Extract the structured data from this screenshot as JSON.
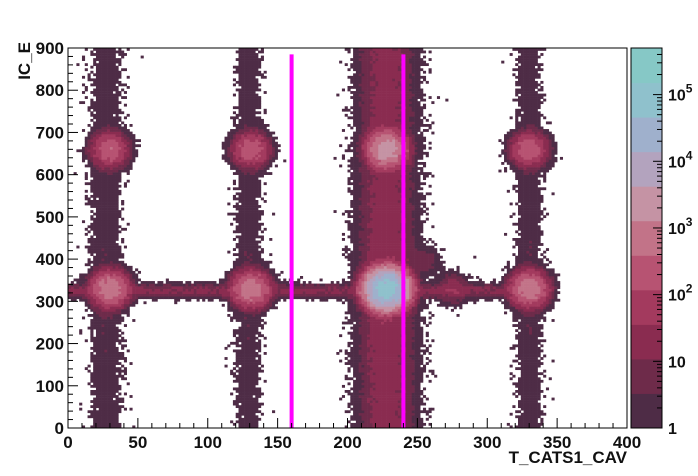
{
  "chart_data": {
    "type": "heatmap",
    "title": "",
    "xlabel": "T_CATS1_CAV",
    "ylabel": "IC_E",
    "xlim": [
      0,
      400
    ],
    "ylim": [
      0,
      900
    ],
    "x_ticks": [
      0,
      50,
      100,
      150,
      200,
      250,
      300,
      350,
      400
    ],
    "y_ticks": [
      0,
      100,
      200,
      300,
      400,
      500,
      600,
      700,
      800,
      900
    ],
    "z_scale": "log",
    "z_range": [
      1,
      500000
    ],
    "colorbar_ticks": [
      {
        "value": 1,
        "label": "1"
      },
      {
        "value": 10,
        "label": "10"
      },
      {
        "value": 100,
        "base": "10",
        "exp": "2"
      },
      {
        "value": 1000,
        "base": "10",
        "exp": "3"
      },
      {
        "value": 10000,
        "base": "10",
        "exp": "4"
      },
      {
        "value": 100000,
        "base": "10",
        "exp": "5"
      }
    ],
    "palette": [
      "#4e2c46",
      "#6e2b4a",
      "#8a2c50",
      "#a33a5e",
      "#b75372",
      "#c27388",
      "#c593a4",
      "#b3a3be",
      "#9fb0cc",
      "#8fc1cc",
      "#86c8c6"
    ],
    "vertical_bands": [
      {
        "x_center": 27,
        "half_width": 11,
        "y_max": 900,
        "peak_counts": 100
      },
      {
        "x_center": 129,
        "half_width": 9,
        "y_max": 900,
        "peak_counts": 100
      },
      {
        "x_center": 228,
        "half_width": 17,
        "y_max": 900,
        "peak_counts": 1000
      },
      {
        "x_center": 330,
        "half_width": 9,
        "y_max": 900,
        "peak_counts": 100
      }
    ],
    "blobs": [
      {
        "x": 30,
        "y": 330,
        "counts": 1000
      },
      {
        "x": 30,
        "y": 660,
        "counts": 300
      },
      {
        "x": 131,
        "y": 330,
        "counts": 1000
      },
      {
        "x": 131,
        "y": 660,
        "counts": 300
      },
      {
        "x": 228,
        "y": 330,
        "counts": 100000
      },
      {
        "x": 228,
        "y": 660,
        "counts": 3000
      },
      {
        "x": 330,
        "y": 330,
        "counts": 1000
      },
      {
        "x": 330,
        "y": 660,
        "counts": 300
      },
      {
        "x": 275,
        "y": 330,
        "counts": 20
      },
      {
        "x": 255,
        "y": 395,
        "counts": 8
      }
    ],
    "horizontal_band": {
      "y_center": 325,
      "half_height": 14,
      "x_min": 0,
      "x_max": 345,
      "counts": 15
    },
    "cut_lines": [
      {
        "x": 160,
        "y_from": 0,
        "y_to": 885,
        "color": "#ff00ff"
      },
      {
        "x": 240,
        "y_from": 0,
        "y_to": 885,
        "color": "#ff00ff"
      }
    ]
  }
}
